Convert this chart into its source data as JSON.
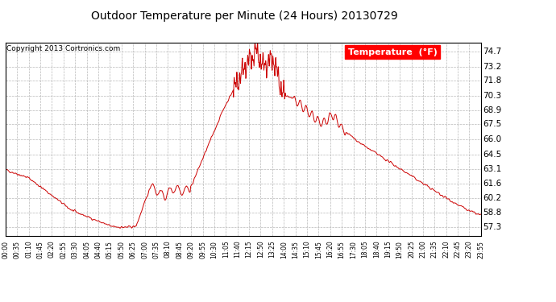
{
  "title": "Outdoor Temperature per Minute (24 Hours) 20130729",
  "copyright_text": "Copyright 2013 Cortronics.com",
  "legend_label": "Temperature  (°F)",
  "line_color": "#cc0000",
  "background_color": "#ffffff",
  "grid_color": "#b0b0b0",
  "yticks": [
    57.3,
    58.8,
    60.2,
    61.6,
    63.1,
    64.5,
    66.0,
    67.5,
    68.9,
    70.3,
    71.8,
    73.2,
    74.7
  ],
  "ylim": [
    56.5,
    75.6
  ],
  "xtick_labels": [
    "00:00",
    "00:35",
    "01:10",
    "01:45",
    "02:20",
    "02:55",
    "03:30",
    "04:05",
    "04:40",
    "05:15",
    "05:50",
    "06:25",
    "07:00",
    "07:35",
    "08:10",
    "08:45",
    "09:20",
    "09:55",
    "10:30",
    "11:05",
    "11:40",
    "12:15",
    "12:50",
    "13:25",
    "14:00",
    "14:35",
    "15:10",
    "15:45",
    "16:20",
    "16:55",
    "17:30",
    "18:05",
    "18:40",
    "19:15",
    "19:50",
    "20:25",
    "21:00",
    "21:35",
    "22:10",
    "22:45",
    "23:20",
    "23:55"
  ],
  "n_minutes": 1440
}
